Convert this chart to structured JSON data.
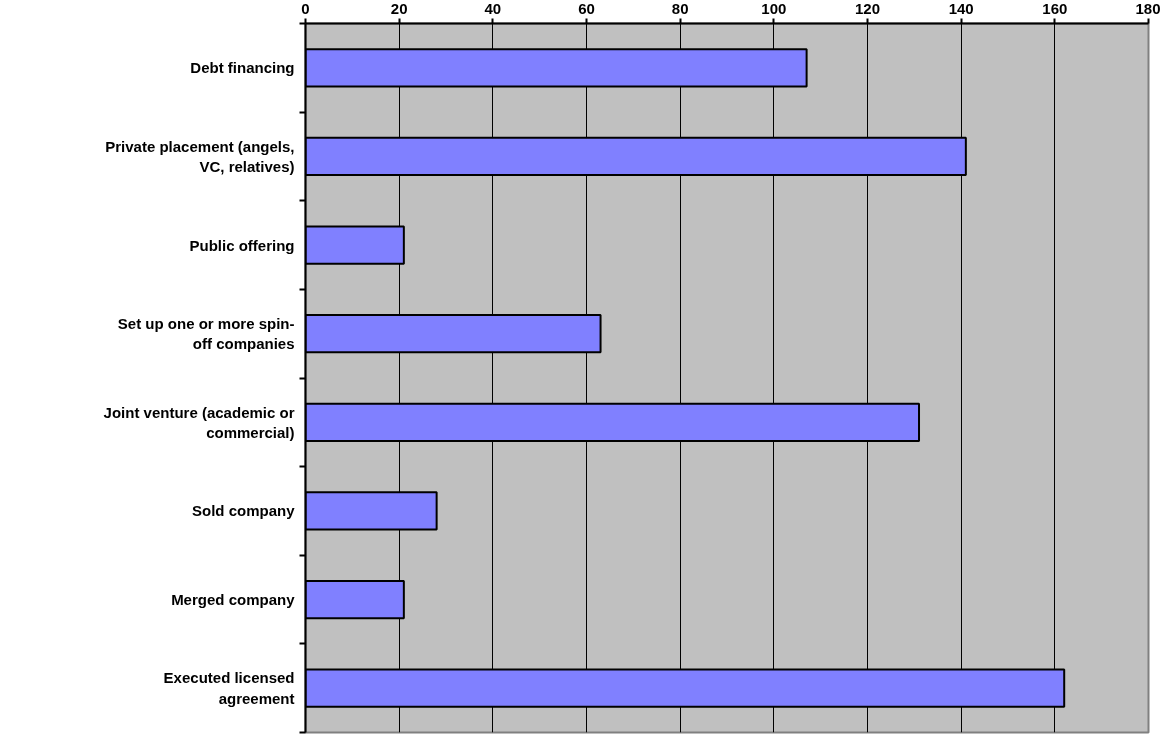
{
  "chart_data": {
    "type": "bar",
    "orientation": "horizontal",
    "categories": [
      "Debt financing",
      "Private placement (angels, VC, relatives)",
      "Public offering",
      "Set up one or more spin-off companies",
      "Joint venture (academic or commercial)",
      "Sold company",
      "Merged company",
      "Executed licensed agreement"
    ],
    "values": [
      107,
      141,
      21,
      63,
      131,
      28,
      21,
      162
    ],
    "color": "#8080ff",
    "xlim": [
      0,
      180
    ],
    "xticks": [
      0,
      20,
      40,
      60,
      80,
      100,
      120,
      140,
      160,
      180
    ],
    "grid": "x"
  }
}
